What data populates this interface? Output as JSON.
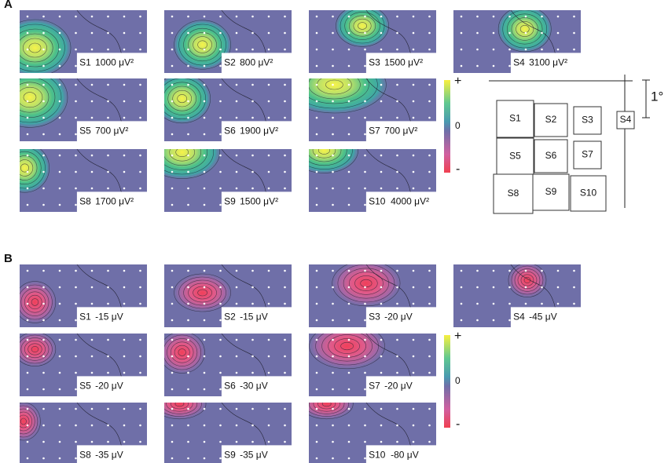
{
  "panels": [
    {
      "label": "A",
      "maps": [
        {
          "stimulus": "S1",
          "amplitude": "1000 μV²"
        },
        {
          "stimulus": "S2",
          "amplitude": "800 μV²"
        },
        {
          "stimulus": "S3",
          "amplitude": "1500 μV²"
        },
        {
          "stimulus": "S4",
          "amplitude": "3100 μV²"
        },
        {
          "stimulus": "S5",
          "amplitude": "700 μV²"
        },
        {
          "stimulus": "S6",
          "amplitude": "1900 μV²"
        },
        {
          "stimulus": "S7",
          "amplitude": "700 μV²"
        },
        {
          "stimulus": "S8",
          "amplitude": "1700 μV²"
        },
        {
          "stimulus": "S9",
          "amplitude": "1500 μV²"
        },
        {
          "stimulus": "S10",
          "amplitude": "4000 μV²"
        }
      ],
      "colorbar": {
        "plus": "+",
        "zero": "0",
        "minus": "-"
      }
    },
    {
      "label": "B",
      "maps": [
        {
          "stimulus": "S1",
          "amplitude": "-15 μV"
        },
        {
          "stimulus": "S2",
          "amplitude": "-15 μV"
        },
        {
          "stimulus": "S3",
          "amplitude": "-20 μV"
        },
        {
          "stimulus": "S4",
          "amplitude": "-45 μV"
        },
        {
          "stimulus": "S5",
          "amplitude": "-20 μV"
        },
        {
          "stimulus": "S6",
          "amplitude": "-30 μV"
        },
        {
          "stimulus": "S7",
          "amplitude": "-20 μV"
        },
        {
          "stimulus": "S8",
          "amplitude": "-35 μV"
        },
        {
          "stimulus": "S9",
          "amplitude": "-35 μV"
        },
        {
          "stimulus": "S10",
          "amplitude": "-80 μV"
        }
      ],
      "colorbar": {
        "plus": "+",
        "zero": "0",
        "minus": "-"
      }
    }
  ],
  "stimulus_layout": {
    "boxes": [
      "S1",
      "S2",
      "S3",
      "S4",
      "S5",
      "S6",
      "S7",
      "S8",
      "S9",
      "S10"
    ],
    "scale": "1°"
  }
}
